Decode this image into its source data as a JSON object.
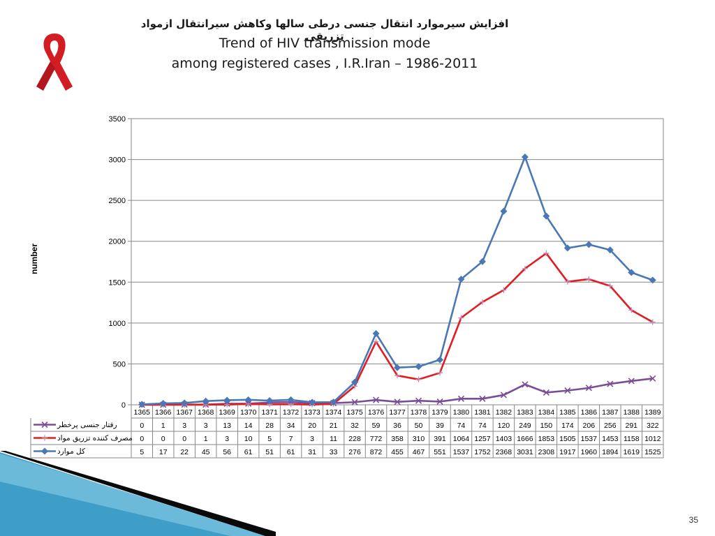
{
  "slide": {
    "title_fa": "افزایش سیرموارد انتقال جنسی درطی سالها وکاهش سیرانتقال ازمواد تزریقی",
    "title_en_line1": "Trend of HIV transmission mode",
    "title_en_line2": "among registered cases , I.R.Iran – 1986-2011",
    "page_number": "35",
    "ribbon_icon": "aids-ribbon-icon",
    "colors": {
      "ribbon": "#d21d24",
      "series_sexual": "#7a4e96",
      "series_injection": "#e31b23",
      "series_total": "#4a78b4",
      "corner_dark": "#0a0a0a",
      "corner_blue": "#3f9ec8"
    }
  },
  "chart_data": {
    "type": "line",
    "title": "",
    "xlabel": "",
    "ylabel": "number",
    "ylim": [
      0,
      3500
    ],
    "y_ticks": [
      0,
      500,
      1000,
      1500,
      2000,
      2500,
      3000,
      3500
    ],
    "grid": true,
    "legend": "table-left",
    "categories": [
      "1365",
      "1366",
      "1367",
      "1368",
      "1369",
      "1370",
      "1371",
      "1372",
      "1373",
      "1374",
      "1375",
      "1376",
      "1377",
      "1378",
      "1379",
      "1380",
      "1381",
      "1382",
      "1383",
      "1384",
      "1385",
      "1386",
      "1387",
      "1388",
      "1389"
    ],
    "series": [
      {
        "name": "رفتار جنسی پرخطر",
        "color": "#7a4e96",
        "marker": "x",
        "values": [
          0,
          1,
          3,
          3,
          13,
          14,
          28,
          34,
          20,
          21,
          32,
          59,
          36,
          50,
          39,
          74,
          74,
          120,
          249,
          150,
          174,
          206,
          256,
          291,
          322
        ]
      },
      {
        "name": "مصرف کننده تزریق مواد",
        "color": "#e31b23",
        "marker": "plus",
        "values": [
          0,
          0,
          0,
          1,
          3,
          10,
          5,
          7,
          3,
          11,
          228,
          772,
          358,
          310,
          391,
          1064,
          1257,
          1403,
          1666,
          1853,
          1505,
          1537,
          1453,
          1158,
          1012
        ]
      },
      {
        "name": "کل موارد",
        "color": "#4a78b4",
        "marker": "diamond",
        "values": [
          5,
          17,
          22,
          45,
          56,
          61,
          51,
          61,
          31,
          33,
          276,
          872,
          455,
          467,
          551,
          1537,
          1752,
          2368,
          3031,
          2308,
          1917,
          1960,
          1894,
          1619,
          1525
        ]
      }
    ]
  }
}
